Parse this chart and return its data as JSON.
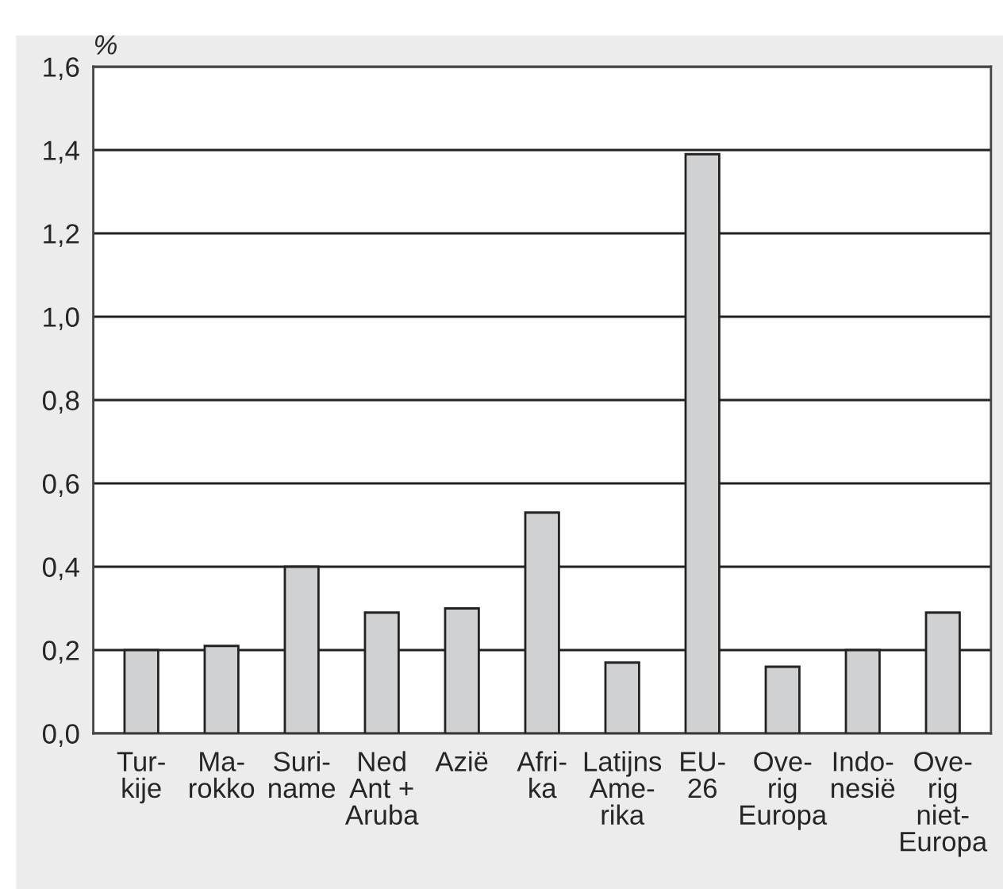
{
  "chart_data": {
    "type": "bar",
    "ylabel": "%",
    "categories": [
      "Tur-\nkije",
      "Ma-\nrokko",
      "Suri-\nname",
      "Ned\nAnt +\nAruba",
      "Azië",
      "Afri-\nka",
      "Latijns\nAme-\nrika",
      "EU-\n26",
      "Ove-\nrig\nEuropa",
      "Indo-\nnesië",
      "Ove-\nrig\nniet-\nEuropa"
    ],
    "values": [
      0.2,
      0.21,
      0.4,
      0.29,
      0.3,
      0.53,
      0.17,
      1.39,
      0.16,
      0.2,
      0.29
    ],
    "color": "#d0d1d3",
    "ylim": [
      0,
      1.6
    ],
    "yticks": [
      {
        "value": 0,
        "label": "0,0"
      },
      {
        "value": 0.2,
        "label": "0,2"
      },
      {
        "value": 0.4,
        "label": "0,4"
      },
      {
        "value": 0.6,
        "label": "0,6"
      },
      {
        "value": 0.8,
        "label": "0,8"
      },
      {
        "value": 1.0,
        "label": "1,0"
      },
      {
        "value": 1.2,
        "label": "1,2"
      },
      {
        "value": 1.4,
        "label": "1,4"
      },
      {
        "value": 1.6,
        "label": "1,6"
      }
    ],
    "grid": "y"
  }
}
